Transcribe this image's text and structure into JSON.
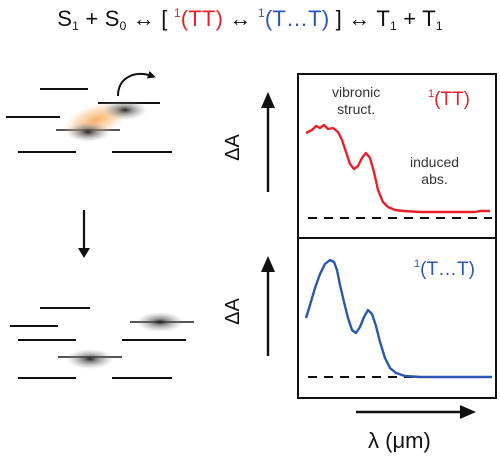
{
  "equation": {
    "s1": "S",
    "s1_sub": "1",
    "plus1": "+",
    "s0": "S",
    "s0_sub": "0",
    "arrow1": "↔",
    "bracket_open": "[",
    "tt_sup": "1",
    "tt": "(TT)",
    "arrow2": "↔",
    "tdt_sup": "1",
    "tdt": "(T…T)",
    "bracket_close": "]",
    "arrow3": "↔",
    "t1a": "T",
    "t1a_sub": "1",
    "plus2": "+",
    "t1b": "T",
    "t1b_sub": "1"
  },
  "top_panel": {
    "annotation_vibronic_line1": "vibronic",
    "annotation_vibronic_line2": "struct.",
    "annotation_induced_line1": "induced",
    "annotation_induced_line2": "abs.",
    "state_sup": "1",
    "state": "(TT)",
    "ylabel": "ΔA"
  },
  "bottom_panel": {
    "state_sup": "1",
    "state": "(T…T)",
    "ylabel": "ΔA"
  },
  "xlabel": "λ (μm)",
  "colors": {
    "tt": "#e8202a",
    "t_t": "#2a56b4",
    "glow": "#f5a04a"
  }
}
